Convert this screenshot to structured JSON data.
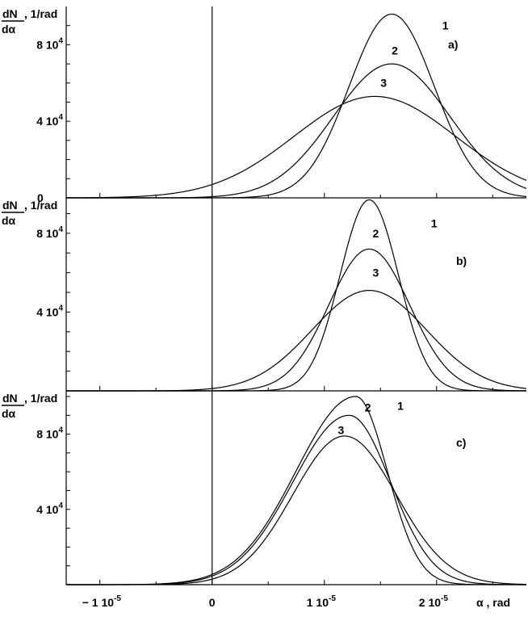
{
  "chart_data": [
    {
      "type": "line",
      "panel_label": "a)",
      "y_label_top": "dN",
      "y_label_bottom": "dα",
      "y_label_unit": ", 1/rad",
      "y_ticks": [
        {
          "value": 0,
          "text": "0"
        },
        {
          "value": 40000,
          "mantissa": "4",
          "base": "10",
          "exp": "4"
        },
        {
          "value": 80000,
          "mantissa": "8",
          "base": "10",
          "exp": "4"
        }
      ],
      "ylim": [
        0,
        100000
      ],
      "xlim": [
        -1.3e-05,
        2.8e-05
      ],
      "series": [
        {
          "name": "1",
          "mu": 1.6e-05,
          "peak": 96000,
          "sigma": 3.8e-06,
          "label_x": 2.05e-05,
          "label_y": 88000
        },
        {
          "name": "2",
          "mu": 1.6e-05,
          "peak": 70000,
          "sigma": 5.2e-06,
          "label_x": 1.6e-05,
          "label_y": 75000
        },
        {
          "name": "3",
          "mu": 1.45e-05,
          "peak": 53000,
          "sigma": 7.2e-06,
          "label_x": 1.5e-05,
          "label_y": 58000
        }
      ]
    },
    {
      "type": "line",
      "panel_label": "b)",
      "y_label_top": "dN",
      "y_label_bottom": "dα",
      "y_label_unit": ", 1/rad",
      "y_ticks": [
        {
          "value": 40000,
          "mantissa": "4",
          "base": "10",
          "exp": "4"
        },
        {
          "value": 80000,
          "mantissa": "8",
          "base": "10",
          "exp": "4"
        }
      ],
      "ylim": [
        0,
        98000
      ],
      "xlim": [
        -1.3e-05,
        2.8e-05
      ],
      "series": [
        {
          "name": "1",
          "mu": 1.4e-05,
          "peak": 97000,
          "sigma": 2.6e-06,
          "label_x": 1.95e-05,
          "label_y": 83000
        },
        {
          "name": "2",
          "mu": 1.4e-05,
          "peak": 72000,
          "sigma": 3.6e-06,
          "label_x": 1.43e-05,
          "label_y": 78000
        },
        {
          "name": "3",
          "mu": 1.4e-05,
          "peak": 51000,
          "sigma": 5.1e-06,
          "label_x": 1.43e-05,
          "label_y": 58000
        }
      ]
    },
    {
      "type": "line",
      "panel_label": "c)",
      "y_label_top": "dN",
      "y_label_bottom": "dα",
      "y_label_unit": ", 1/rad",
      "y_ticks": [
        {
          "value": 40000,
          "mantissa": "4",
          "base": "10",
          "exp": "4"
        },
        {
          "value": 80000,
          "mantissa": "8",
          "base": "10",
          "exp": "4"
        }
      ],
      "ylim": [
        0,
        103000
      ],
      "xlim": [
        -1.3e-05,
        2.8e-05
      ],
      "x_ticks": [
        {
          "value": -1e-05,
          "mantissa": "− 1",
          "base": "10",
          "exp": "-5"
        },
        {
          "value": 0,
          "text": "0"
        },
        {
          "value": 1e-05,
          "mantissa": "1",
          "base": "10",
          "exp": "-5"
        },
        {
          "value": 2e-05,
          "mantissa": "2",
          "base": "10",
          "exp": "-5"
        }
      ],
      "x_label": "α , rad",
      "series": [
        {
          "name": "1",
          "mu": 1.28e-05,
          "peak": 100000,
          "sigL": 5.3e-06,
          "sigR": 2.8e-06,
          "label_x": 1.65e-05,
          "label_y": 93000
        },
        {
          "name": "2",
          "mu": 1.22e-05,
          "peak": 90000,
          "sigL": 5e-06,
          "sigR": 3.7e-06,
          "label_x": 1.36e-05,
          "label_y": 92000
        },
        {
          "name": "3",
          "mu": 1.18e-05,
          "peak": 79000,
          "sigL": 4.6e-06,
          "sigR": 4.6e-06,
          "label_x": 1.12e-05,
          "label_y": 80000
        }
      ]
    }
  ]
}
